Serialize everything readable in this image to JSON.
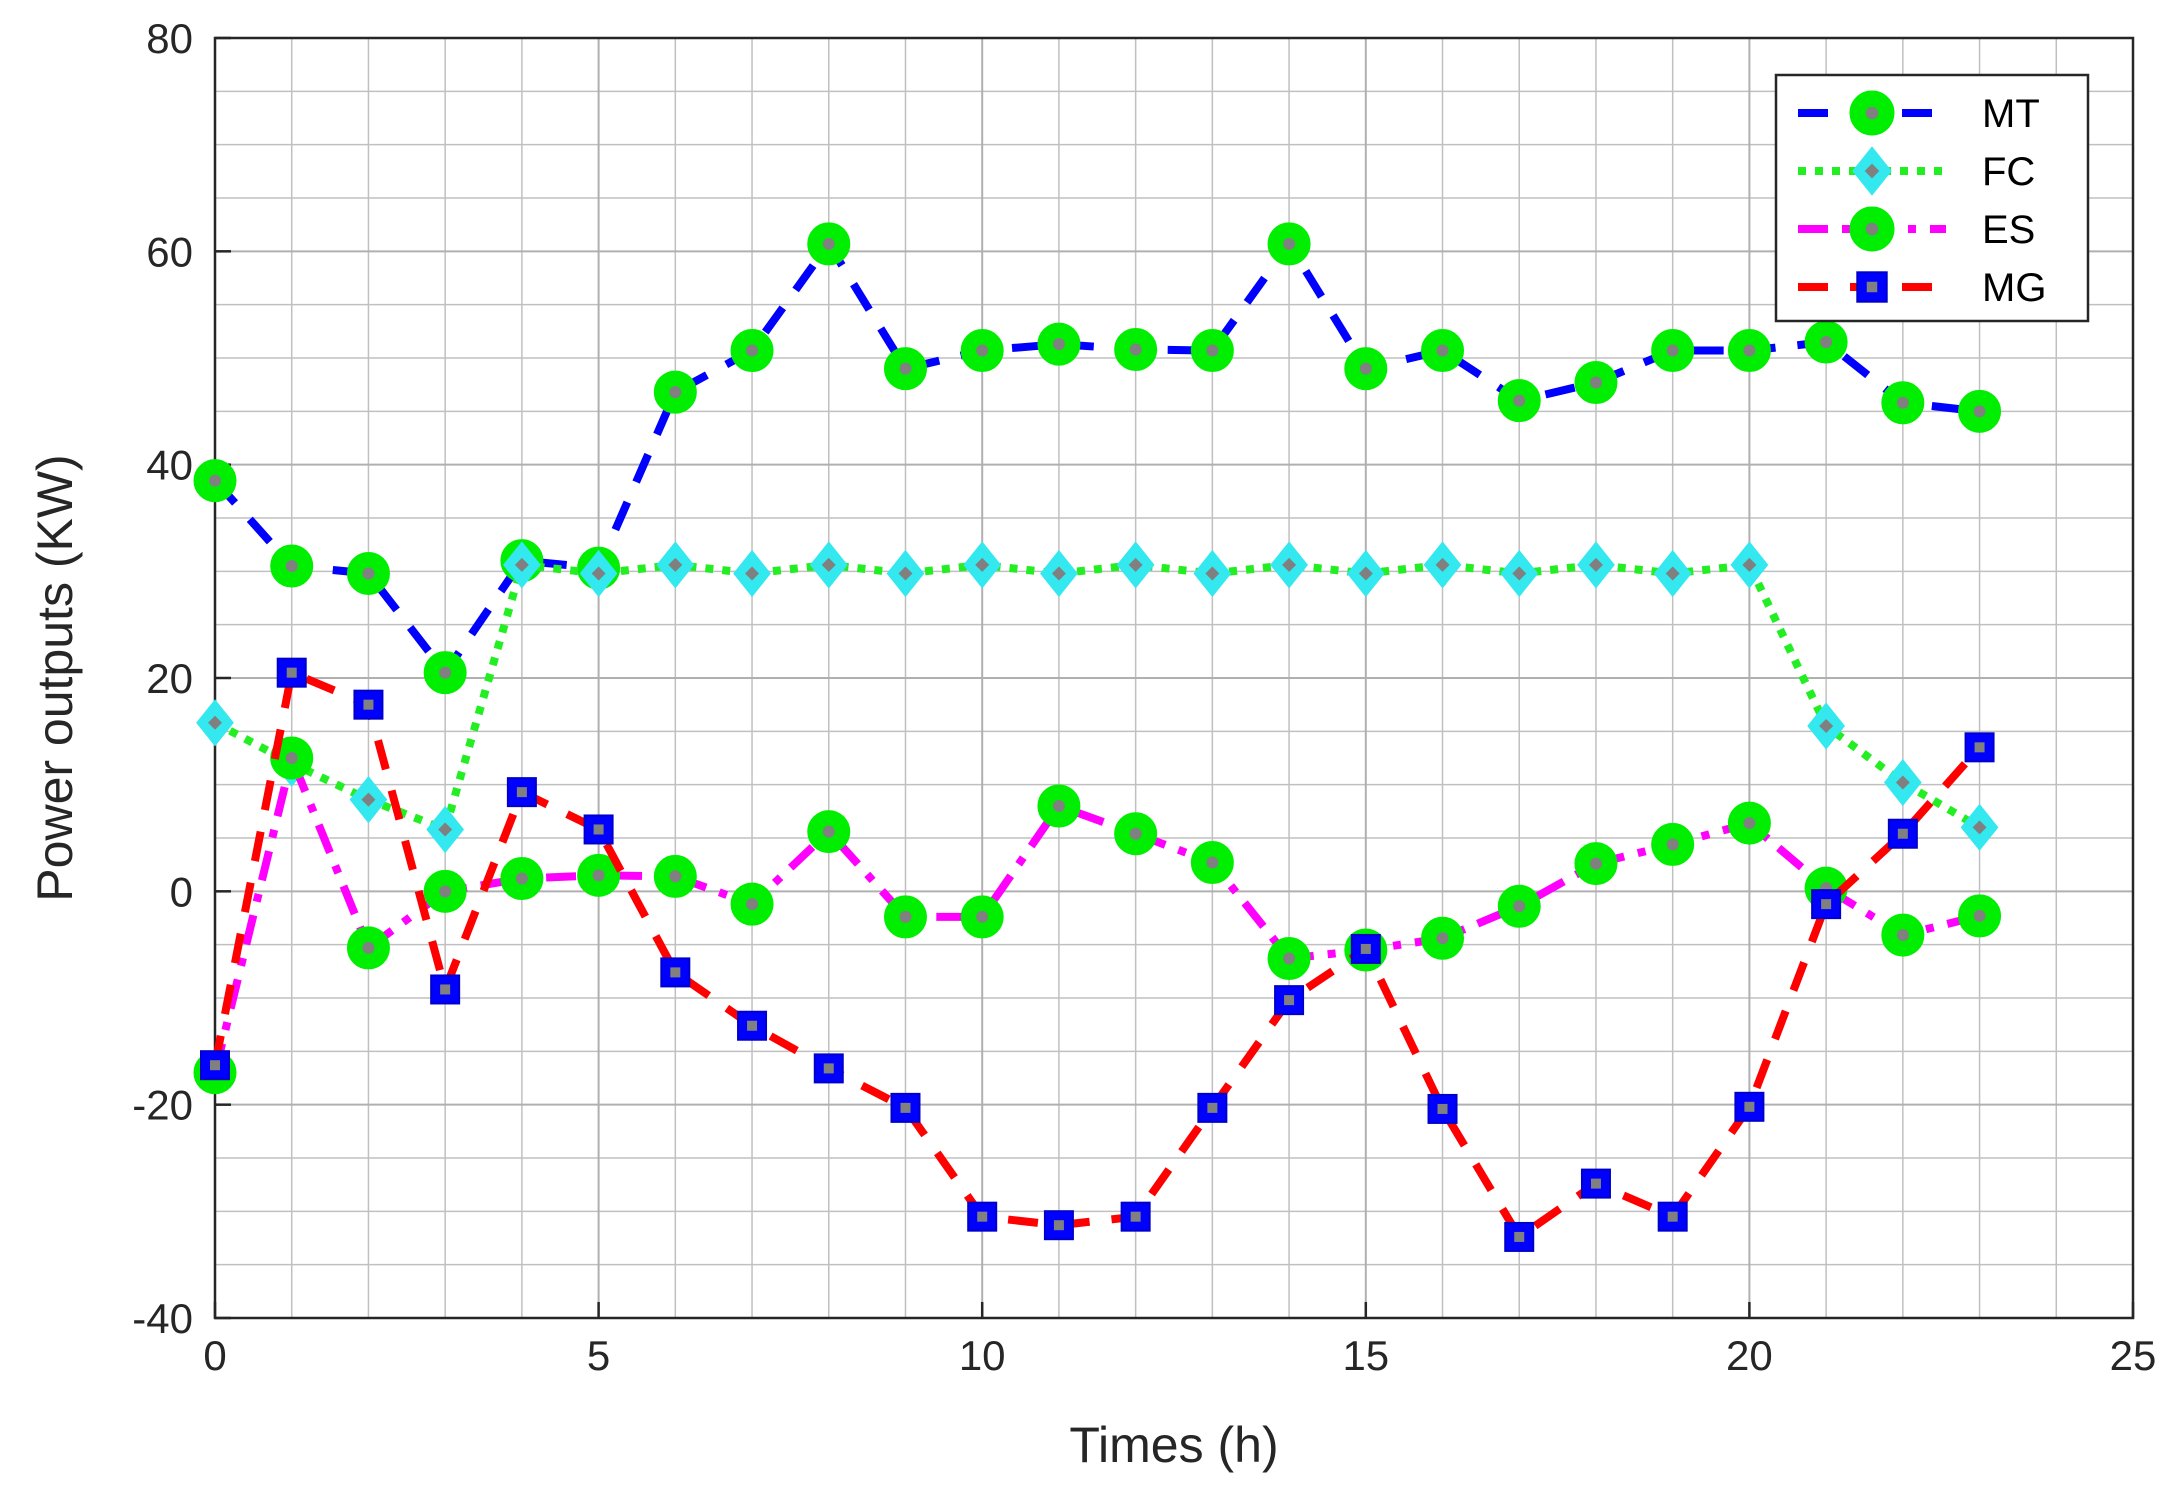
{
  "chart_data": {
    "type": "line",
    "xlabel": "Times (h)",
    "ylabel": "Power outputs (KW)",
    "xlim": [
      0,
      25
    ],
    "ylim": [
      -40,
      80
    ],
    "xticks": [
      0,
      5,
      10,
      15,
      20,
      25
    ],
    "yticks": [
      -40,
      -20,
      0,
      20,
      40,
      60,
      80
    ],
    "grid": true,
    "minor_grid": true,
    "legend_position": "top-right",
    "x": [
      0,
      1,
      2,
      3,
      4,
      5,
      6,
      7,
      8,
      9,
      10,
      11,
      12,
      13,
      14,
      15,
      16,
      17,
      18,
      19,
      20,
      21,
      22,
      23
    ],
    "series": [
      {
        "name": "MT",
        "line_color": "#0000ff",
        "line_style": "dashed",
        "marker": "circle",
        "marker_fill": "#00ee00",
        "values": [
          38.5,
          30.5,
          29.8,
          20.5,
          31.0,
          30.3,
          46.8,
          50.7,
          60.7,
          49.0,
          50.7,
          51.3,
          50.8,
          50.7,
          60.7,
          49.0,
          50.7,
          46.0,
          47.7,
          50.7,
          50.7,
          51.5,
          45.8,
          45.0
        ]
      },
      {
        "name": "FC",
        "line_color": "#22ee22",
        "line_style": "dotted",
        "marker": "diamond",
        "marker_fill": "#33e8ee",
        "values": [
          15.8,
          12.0,
          8.6,
          5.8,
          30.6,
          29.8,
          30.6,
          29.8,
          30.6,
          29.8,
          30.6,
          29.8,
          30.6,
          29.8,
          30.6,
          29.8,
          30.6,
          29.8,
          30.6,
          29.8,
          30.6,
          15.5,
          10.2,
          6.0
        ]
      },
      {
        "name": "ES",
        "line_color": "#ff00ff",
        "line_style": "dashdot",
        "marker": "circle",
        "marker_fill": "#00ee00",
        "values": [
          -17.0,
          12.5,
          -5.3,
          0.0,
          1.2,
          1.5,
          1.4,
          -1.2,
          5.6,
          -2.4,
          -2.4,
          8.0,
          5.4,
          2.7,
          -6.3,
          -5.5,
          -4.4,
          -1.4,
          2.6,
          4.4,
          6.4,
          0.3,
          -4.1,
          -2.3
        ]
      },
      {
        "name": "MG",
        "line_color": "#ff0000",
        "line_style": "dashed",
        "marker": "square",
        "marker_fill": "#0000ff",
        "values": [
          -16.3,
          20.5,
          17.5,
          -9.2,
          9.3,
          5.8,
          -7.6,
          -12.6,
          -16.6,
          -20.3,
          -30.5,
          -31.3,
          -30.5,
          -20.3,
          -10.2,
          -5.4,
          -20.4,
          -32.4,
          -27.4,
          -30.5,
          -20.2,
          -1.2,
          5.4,
          13.5
        ]
      }
    ]
  }
}
